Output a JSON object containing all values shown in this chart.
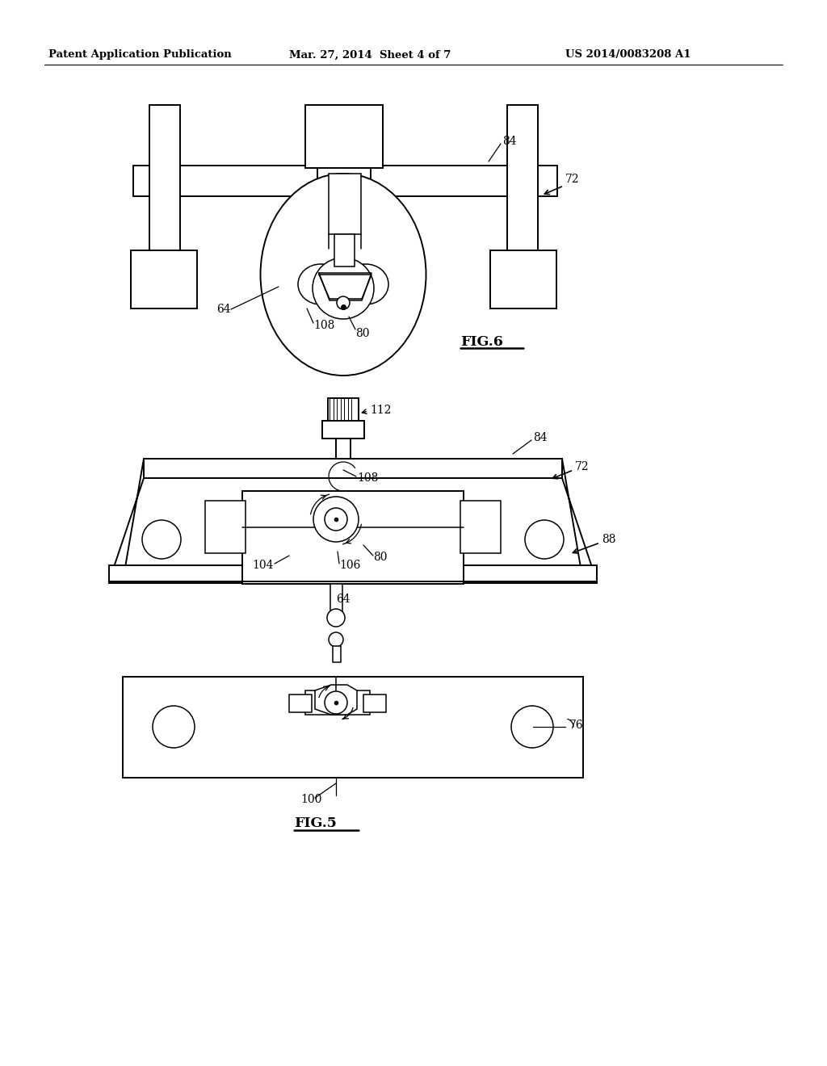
{
  "header_left": "Patent Application Publication",
  "header_mid": "Mar. 27, 2014  Sheet 4 of 7",
  "header_right": "US 2014/0083208 A1",
  "bg_color": "#ffffff"
}
